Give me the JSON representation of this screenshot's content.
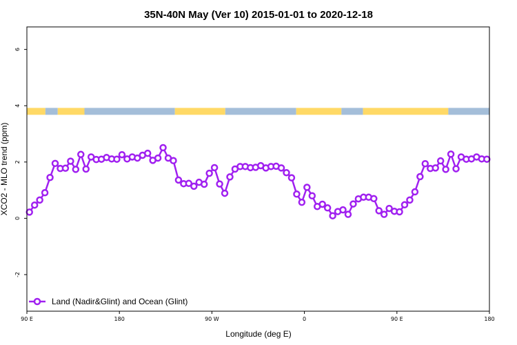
{
  "chart_data": {
    "type": "line",
    "title": "35N-40N May (Ver 10)   2015-01-01 to 2020-12-18",
    "xlabel": "Longitude (deg E)",
    "ylabel": "XCO2 - MLO trend (ppm)",
    "xlim": [
      90,
      540
    ],
    "ylim": [
      -3.3,
      6.8
    ],
    "x_ticks": [
      {
        "value": 90,
        "label": "90 E"
      },
      {
        "value": 180,
        "label": "180"
      },
      {
        "value": 270,
        "label": "90 W"
      },
      {
        "value": 360,
        "label": "0"
      },
      {
        "value": 450,
        "label": "90 E"
      },
      {
        "value": 540,
        "label": "180"
      }
    ],
    "y_ticks": [
      {
        "value": -2,
        "label": "-2"
      },
      {
        "value": 0,
        "label": "0"
      },
      {
        "value": 2,
        "label": "2"
      },
      {
        "value": 4,
        "label": "4"
      },
      {
        "value": 6,
        "label": "6"
      }
    ],
    "grid": false,
    "legend_position": "bottom-left",
    "series": [
      {
        "name": "Land (Nadir&Glint) and Ocean (Glint)",
        "color": "#a020f0",
        "x": [
          92.5,
          97.5,
          102.5,
          107.5,
          112.5,
          117.5,
          122.5,
          127.5,
          132.5,
          137.5,
          142.5,
          147.5,
          152.5,
          157.5,
          162.5,
          167.5,
          172.5,
          177.5,
          182.5,
          187.5,
          192.5,
          197.5,
          202.5,
          207.5,
          212.5,
          217.5,
          222.5,
          227.5,
          232.5,
          237.5,
          242.5,
          247.5,
          252.5,
          257.5,
          262.5,
          267.5,
          272.5,
          277.5,
          282.5,
          287.5,
          292.5,
          297.5,
          302.5,
          307.5,
          312.5,
          317.5,
          322.5,
          327.5,
          332.5,
          337.5,
          342.5,
          347.5,
          352.5,
          357.5,
          362.5,
          367.5,
          372.5,
          377.5,
          382.5,
          387.5,
          392.5,
          397.5,
          402.5,
          407.5,
          412.5,
          417.5,
          422.5,
          427.5,
          432.5,
          437.5,
          442.5,
          447.5,
          452.5,
          457.5,
          462.5,
          467.5,
          472.5,
          477.5,
          482.5,
          487.5,
          492.5,
          497.5,
          502.5,
          507.5,
          512.5,
          517.5,
          522.5,
          527.5,
          532.5,
          537.5
        ],
        "y": [
          0.22,
          0.47,
          0.65,
          0.91,
          1.45,
          1.95,
          1.77,
          1.78,
          2.03,
          1.74,
          2.27,
          1.75,
          2.18,
          2.09,
          2.1,
          2.16,
          2.11,
          2.1,
          2.26,
          2.11,
          2.18,
          2.14,
          2.24,
          2.31,
          2.06,
          2.14,
          2.51,
          2.14,
          2.05,
          1.36,
          1.23,
          1.24,
          1.14,
          1.28,
          1.21,
          1.6,
          1.8,
          1.22,
          0.89,
          1.47,
          1.75,
          1.84,
          1.84,
          1.8,
          1.81,
          1.87,
          1.79,
          1.84,
          1.85,
          1.79,
          1.62,
          1.44,
          0.86,
          0.57,
          1.1,
          0.8,
          0.42,
          0.5,
          0.37,
          0.09,
          0.24,
          0.3,
          0.14,
          0.51,
          0.69,
          0.75,
          0.75,
          0.7,
          0.27,
          0.14,
          0.35,
          0.25,
          0.23,
          0.48,
          0.65,
          0.94,
          1.48,
          1.94,
          1.77,
          1.79,
          2.04,
          1.74,
          2.28,
          1.76,
          2.18,
          2.1,
          2.11,
          2.18,
          2.11,
          2.1
        ]
      }
    ],
    "surface_strip": {
      "y_value": 3.8,
      "colors": {
        "land": "#ffd966",
        "ocean": "#a4bed9"
      },
      "segments": [
        {
          "type": "land",
          "from": 90,
          "to": 108
        },
        {
          "type": "ocean",
          "from": 108,
          "to": 120
        },
        {
          "type": "land",
          "from": 120,
          "to": 146
        },
        {
          "type": "ocean",
          "from": 146,
          "to": 234
        },
        {
          "type": "land",
          "from": 234,
          "to": 283
        },
        {
          "type": "ocean",
          "from": 283,
          "to": 352
        },
        {
          "type": "land",
          "from": 352,
          "to": 396
        },
        {
          "type": "ocean",
          "from": 396,
          "to": 417
        },
        {
          "type": "land",
          "from": 417,
          "to": 500
        },
        {
          "type": "ocean",
          "from": 500,
          "to": 540
        }
      ]
    }
  }
}
